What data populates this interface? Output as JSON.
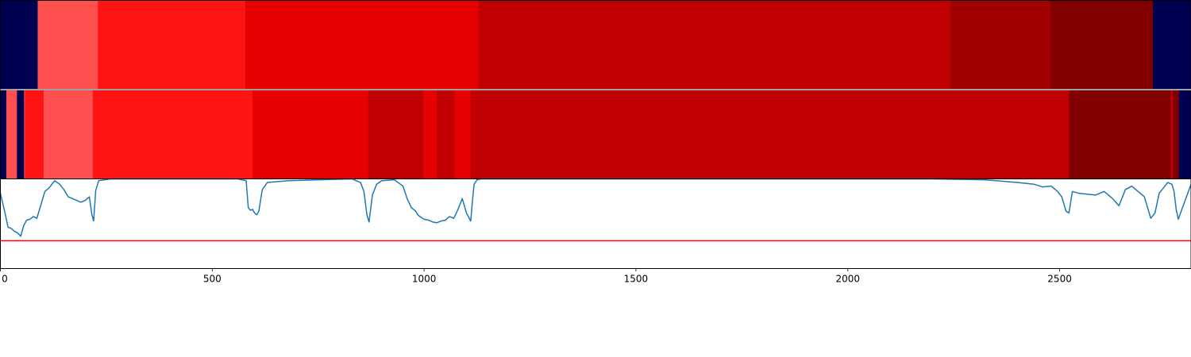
{
  "chart_data": {
    "type": "heatmap",
    "xlim": [
      0,
      2810
    ],
    "x_ticks": [
      0,
      500,
      1000,
      1500,
      2000,
      2500
    ],
    "segment_bands": [
      {
        "name": "reference",
        "segments": [
          {
            "start": 0,
            "end": 88,
            "color": "#000050"
          },
          {
            "start": 88,
            "end": 230,
            "color": "#ff5050"
          },
          {
            "start": 230,
            "end": 578,
            "color": "#ff1414"
          },
          {
            "start": 578,
            "end": 1128,
            "color": "#e60000"
          },
          {
            "start": 1128,
            "end": 2242,
            "color": "#c00000"
          },
          {
            "start": 2242,
            "end": 2479,
            "color": "#a00000"
          },
          {
            "start": 2479,
            "end": 2720,
            "color": "#800000"
          },
          {
            "start": 2720,
            "end": 2810,
            "color": "#000050"
          }
        ]
      },
      {
        "name": "prediction",
        "segments": [
          {
            "start": 0,
            "end": 14,
            "color": "#000050"
          },
          {
            "start": 14,
            "end": 39,
            "color": "#ff5050"
          },
          {
            "start": 39,
            "end": 56,
            "color": "#000050"
          },
          {
            "start": 56,
            "end": 58,
            "color": "#ff5050"
          },
          {
            "start": 58,
            "end": 102,
            "color": "#ff1414"
          },
          {
            "start": 102,
            "end": 218,
            "color": "#ff5050"
          },
          {
            "start": 218,
            "end": 595,
            "color": "#ff1414"
          },
          {
            "start": 595,
            "end": 868,
            "color": "#e60000"
          },
          {
            "start": 868,
            "end": 998,
            "color": "#c00000"
          },
          {
            "start": 998,
            "end": 1030,
            "color": "#e60000"
          },
          {
            "start": 1030,
            "end": 1072,
            "color": "#c00000"
          },
          {
            "start": 1072,
            "end": 1110,
            "color": "#e60000"
          },
          {
            "start": 1110,
            "end": 2522,
            "color": "#c00000"
          },
          {
            "start": 2522,
            "end": 2762,
            "color": "#800000"
          },
          {
            "start": 2762,
            "end": 2767,
            "color": "#c00000"
          },
          {
            "start": 2767,
            "end": 2781,
            "color": "#800000"
          },
          {
            "start": 2781,
            "end": 2810,
            "color": "#000050"
          }
        ]
      }
    ],
    "line_panel": {
      "ylim": [
        0,
        1
      ],
      "threshold": 0.31,
      "threshold_color": "#ff0000",
      "series_color": "#1f77b4",
      "x": [
        0,
        10,
        18,
        25,
        32,
        40,
        48,
        55,
        62,
        70,
        78,
        86,
        95,
        105,
        115,
        128,
        140,
        150,
        160,
        170,
        180,
        190,
        200,
        210,
        216,
        220,
        225,
        232,
        260,
        400,
        560,
        580,
        585,
        590,
        595,
        600,
        605,
        610,
        618,
        630,
        680,
        830,
        850,
        858,
        865,
        870,
        878,
        888,
        900,
        930,
        950,
        960,
        970,
        980,
        985,
        990,
        1000,
        1010,
        1020,
        1030,
        1040,
        1050,
        1060,
        1070,
        1080,
        1090,
        1100,
        1110,
        1115,
        1118,
        1125,
        1135,
        1160,
        1400,
        1700,
        2000,
        2200,
        2320,
        2350,
        2400,
        2440,
        2460,
        2480,
        2495,
        2505,
        2515,
        2522,
        2530,
        2545,
        2565,
        2585,
        2605,
        2625,
        2640,
        2655,
        2670,
        2685,
        2700,
        2715,
        2725,
        2735,
        2745,
        2755,
        2765,
        2770,
        2775,
        2780,
        2790,
        2810
      ],
      "y": [
        0.84,
        0.64,
        0.46,
        0.45,
        0.42,
        0.4,
        0.36,
        0.48,
        0.54,
        0.55,
        0.58,
        0.56,
        0.7,
        0.86,
        0.9,
        0.98,
        0.94,
        0.88,
        0.8,
        0.78,
        0.76,
        0.74,
        0.76,
        0.8,
        0.6,
        0.53,
        0.87,
        0.98,
        1.0,
        1.0,
        1.0,
        0.98,
        0.68,
        0.65,
        0.66,
        0.62,
        0.6,
        0.64,
        0.88,
        0.96,
        0.98,
        1.0,
        0.96,
        0.86,
        0.6,
        0.52,
        0.82,
        0.94,
        0.98,
        0.99,
        0.92,
        0.78,
        0.68,
        0.64,
        0.6,
        0.58,
        0.55,
        0.54,
        0.52,
        0.51,
        0.53,
        0.54,
        0.58,
        0.56,
        0.66,
        0.78,
        0.62,
        0.53,
        0.8,
        0.94,
        0.99,
        1.0,
        1.0,
        1.0,
        1.0,
        1.0,
        1.0,
        0.99,
        0.98,
        0.96,
        0.94,
        0.91,
        0.92,
        0.86,
        0.8,
        0.64,
        0.62,
        0.86,
        0.84,
        0.83,
        0.82,
        0.86,
        0.78,
        0.7,
        0.88,
        0.92,
        0.86,
        0.8,
        0.56,
        0.62,
        0.84,
        0.9,
        0.96,
        0.94,
        0.86,
        0.66,
        0.55,
        0.68,
        0.94,
        0.96
      ]
    }
  }
}
